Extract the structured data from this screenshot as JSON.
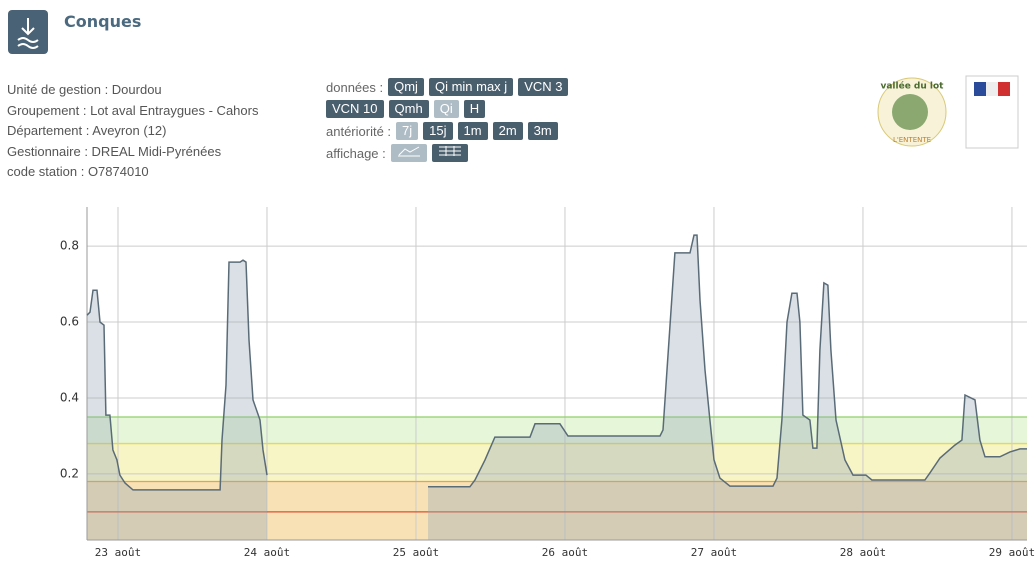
{
  "header": {
    "title": "Conques"
  },
  "info": [
    "Unité de gestion : Dourdou",
    "Groupement : Lot aval Entraygues - Cahors",
    "Département : Aveyron (12)",
    "Gestionnaire : DREAL Midi-Pyrénées",
    "code station : O7874010"
  ],
  "controls": [
    {
      "label": "données :",
      "options": [
        {
          "label": "Qmj",
          "selected": false
        },
        {
          "label": "Qi min max j",
          "selected": false
        },
        {
          "label": "VCN 3",
          "selected": false
        },
        {
          "label": "VCN 10",
          "selected": false
        },
        {
          "label": "Qmh",
          "selected": false
        },
        {
          "label": "Qi",
          "selected": true
        },
        {
          "label": "H",
          "selected": false
        }
      ]
    },
    {
      "label": "antériorité :",
      "options": [
        {
          "label": "7j",
          "selected": true
        },
        {
          "label": "15j",
          "selected": false
        },
        {
          "label": "1m",
          "selected": false
        },
        {
          "label": "2m",
          "selected": false
        },
        {
          "label": "3m",
          "selected": false
        }
      ]
    },
    {
      "label": "affichage :",
      "options": [
        {
          "icon": "line",
          "selected": true
        },
        {
          "icon": "table",
          "selected": false
        }
      ]
    }
  ],
  "logos": {
    "left_top": "vallée du lot",
    "left_bottom": "L'ENTENTE"
  },
  "chart_data": {
    "type": "area",
    "color": "#5a6b78",
    "fill": "rgba(150,165,180,0.35)",
    "x": [
      22.792,
      22.812,
      22.832,
      22.859,
      22.879,
      22.906,
      22.919,
      22.946,
      22.966,
      22.993,
      23.013,
      23.047,
      23.101,
      23.685,
      23.698,
      23.725,
      23.745,
      23.819,
      23.839,
      23.859,
      23.879,
      23.906,
      23.953,
      23.973,
      24.0,
      24.5,
      25.081,
      25.362,
      25.396,
      25.463,
      25.53,
      25.765,
      25.799,
      25.966,
      26.02,
      26.638,
      26.658,
      26.685,
      26.738,
      26.839,
      26.866,
      26.886,
      26.906,
      26.94,
      26.973,
      27.0,
      27.04,
      27.107,
      27.396,
      27.423,
      27.456,
      27.49,
      27.523,
      27.557,
      27.577,
      27.597,
      27.644,
      27.664,
      27.691,
      27.711,
      27.738,
      27.765,
      27.785,
      27.819,
      27.879,
      27.933,
      28.02,
      28.06,
      28.416,
      28.45,
      28.517,
      28.617,
      28.664,
      28.685,
      28.752,
      28.785,
      28.819,
      28.919,
      28.987,
      29.054,
      29.101
    ],
    "values": [
      0.618,
      0.626,
      0.684,
      0.684,
      0.6,
      0.592,
      0.355,
      0.355,
      0.263,
      0.237,
      0.197,
      0.176,
      0.158,
      0.158,
      0.289,
      0.434,
      0.758,
      0.758,
      0.763,
      0.758,
      0.553,
      0.395,
      0.342,
      0.263,
      0.197,
      null,
      0.166,
      0.166,
      0.184,
      0.237,
      0.297,
      0.297,
      0.332,
      0.332,
      0.3,
      0.3,
      0.316,
      0.474,
      0.782,
      0.782,
      0.829,
      0.829,
      0.658,
      0.474,
      0.342,
      0.237,
      0.189,
      0.168,
      0.168,
      0.189,
      0.342,
      0.6,
      0.676,
      0.676,
      0.6,
      0.355,
      0.342,
      0.268,
      0.268,
      0.526,
      0.703,
      0.697,
      0.526,
      0.342,
      0.237,
      0.197,
      0.197,
      0.184,
      0.184,
      0.203,
      0.242,
      0.276,
      0.289,
      0.408,
      0.395,
      0.289,
      0.245,
      0.245,
      0.258,
      0.266,
      0.266
    ],
    "xlim": [
      22.792,
      29.101
    ],
    "xticks": [
      {
        "value": 23,
        "label": "23 août"
      },
      {
        "value": 24,
        "label": "24 août"
      },
      {
        "value": 25,
        "label": "25 août"
      },
      {
        "value": 26,
        "label": "26 août"
      },
      {
        "value": 27,
        "label": "27 août"
      },
      {
        "value": 28,
        "label": "28 août"
      },
      {
        "value": 29,
        "label": "29 août"
      }
    ],
    "ylim": [
      0.026,
      0.903
    ],
    "yticks": [
      0.2,
      0.4,
      0.6,
      0.8
    ],
    "grid": true,
    "thresholds": [
      {
        "value": 0.35,
        "color": "#8fd16a",
        "band": "rgba(200,235,170,0.45)"
      },
      {
        "value": 0.28,
        "color": "#e6dc4a",
        "band": "rgba(240,235,150,0.55)"
      },
      {
        "value": 0.18,
        "color": "#f0a040",
        "band": "rgba(240,200,120,0.55)"
      },
      {
        "value": 0.1,
        "color": "#e05030",
        "band": null
      }
    ]
  }
}
